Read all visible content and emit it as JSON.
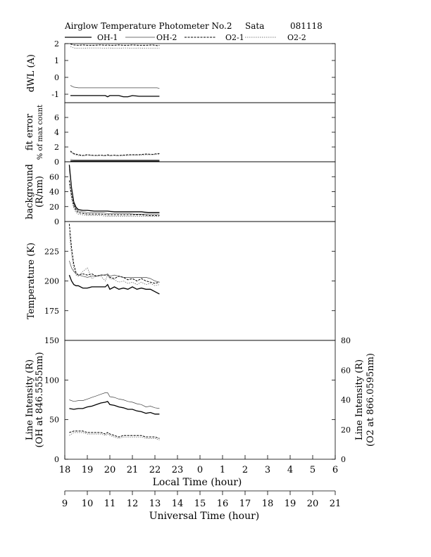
{
  "header": {
    "title": "Airglow Temperature Photometer No.2",
    "site": "Sata",
    "date": "081118"
  },
  "legend": [
    {
      "label": "OH-1",
      "style": "solid-thick"
    },
    {
      "label": "OH-2",
      "style": "solid-thin"
    },
    {
      "label": "O2-1",
      "style": "dash"
    },
    {
      "label": "O2-2",
      "style": "dot"
    }
  ],
  "chart_data": [
    {
      "type": "line",
      "id": "dwl",
      "ylabel": [
        "dWL (A)"
      ],
      "ylim": [
        -1.5,
        2
      ],
      "yticks": [
        -1,
        0,
        1,
        2
      ],
      "x": [
        9.25,
        9.4,
        9.6,
        9.8,
        10.0,
        10.3,
        10.6,
        10.8,
        10.9,
        11.0,
        11.2,
        11.4,
        11.6,
        11.8,
        12.0,
        12.3,
        12.6,
        12.9,
        13.1,
        13.2
      ],
      "series": [
        {
          "name": "OH-1",
          "values": [
            -1.08,
            -1.08,
            -1.08,
            -1.08,
            -1.08,
            -1.08,
            -1.08,
            -1.08,
            -1.15,
            -1.08,
            -1.08,
            -1.08,
            -1.15,
            -1.15,
            -1.08,
            -1.12,
            -1.12,
            -1.12,
            -1.12,
            -1.12
          ]
        },
        {
          "name": "OH-2",
          "values": [
            -0.48,
            -0.58,
            -0.62,
            -0.62,
            -0.62,
            -0.62,
            -0.62,
            -0.62,
            -0.62,
            -0.62,
            -0.62,
            -0.62,
            -0.62,
            -0.62,
            -0.62,
            -0.62,
            -0.62,
            -0.62,
            -0.62,
            -0.66
          ]
        },
        {
          "name": "O2-1",
          "values": [
            1.98,
            1.92,
            1.9,
            1.92,
            1.9,
            1.9,
            1.92,
            1.9,
            1.92,
            1.9,
            1.9,
            1.92,
            1.9,
            1.9,
            1.92,
            1.9,
            1.9,
            1.92,
            1.88,
            1.9
          ]
        },
        {
          "name": "O2-2",
          "values": [
            1.82,
            1.74,
            1.72,
            1.72,
            1.74,
            1.74,
            1.74,
            1.72,
            1.74,
            1.74,
            1.72,
            1.72,
            1.74,
            1.74,
            1.72,
            1.74,
            1.72,
            1.72,
            1.72,
            1.72
          ]
        }
      ]
    },
    {
      "type": "line",
      "id": "fiterror",
      "ylabel": [
        "fit error",
        "% of max count"
      ],
      "ylim": [
        0,
        8
      ],
      "yticks": [
        0,
        2,
        4,
        6
      ],
      "x": [
        9.25,
        9.4,
        9.6,
        9.8,
        10.0,
        10.3,
        10.6,
        10.8,
        10.9,
        11.0,
        11.2,
        11.4,
        11.6,
        11.8,
        12.0,
        12.3,
        12.6,
        12.9,
        13.1,
        13.2
      ],
      "series": [
        {
          "name": "OH-1",
          "values": [
            0.1,
            0.1,
            0.1,
            0.1,
            0.1,
            0.1,
            0.1,
            0.1,
            0.1,
            0.1,
            0.1,
            0.1,
            0.1,
            0.1,
            0.1,
            0.1,
            0.1,
            0.1,
            0.1,
            0.1
          ]
        },
        {
          "name": "OH-2",
          "values": [
            0.3,
            0.25,
            0.25,
            0.25,
            0.25,
            0.25,
            0.25,
            0.25,
            0.25,
            0.25,
            0.25,
            0.25,
            0.25,
            0.25,
            0.25,
            0.25,
            0.25,
            0.25,
            0.25,
            0.25
          ]
        },
        {
          "name": "O2-1",
          "values": [
            1.45,
            1.1,
            0.95,
            0.85,
            0.95,
            0.85,
            0.9,
            0.85,
            0.95,
            0.85,
            0.9,
            0.85,
            0.9,
            0.95,
            0.95,
            0.95,
            1.05,
            1.0,
            1.1,
            1.1
          ]
        },
        {
          "name": "O2-2",
          "values": [
            1.35,
            1.0,
            0.85,
            0.8,
            0.9,
            0.8,
            0.85,
            0.8,
            0.85,
            0.8,
            0.85,
            0.8,
            0.85,
            0.85,
            0.9,
            0.9,
            0.95,
            0.95,
            1.0,
            1.05
          ]
        }
      ]
    },
    {
      "type": "line",
      "id": "background",
      "ylabel": [
        "background",
        "(R/nm)"
      ],
      "ylim": [
        0,
        80
      ],
      "yticks": [
        0,
        20,
        40,
        60
      ],
      "x": [
        9.2,
        9.3,
        9.4,
        9.5,
        9.6,
        9.8,
        10.0,
        10.3,
        10.6,
        10.9,
        11.2,
        11.5,
        11.8,
        12.1,
        12.4,
        12.7,
        13.0,
        13.2
      ],
      "series": [
        {
          "name": "OH-1",
          "values": [
            76,
            45,
            26,
            19,
            16,
            15,
            15,
            14,
            14,
            14,
            13,
            13,
            13,
            13,
            13,
            12,
            12,
            12
          ]
        },
        {
          "name": "OH-2",
          "values": [
            70,
            42,
            24,
            17,
            14,
            13,
            12,
            12,
            12,
            11,
            11,
            11,
            11,
            10,
            10,
            10,
            10,
            10
          ]
        },
        {
          "name": "O2-1",
          "values": [
            55,
            35,
            21,
            15,
            12,
            11,
            10,
            10,
            10,
            9,
            9,
            9,
            9,
            9,
            9,
            8,
            8,
            8
          ]
        },
        {
          "name": "O2-2",
          "values": [
            50,
            30,
            18,
            12,
            10,
            9,
            8,
            8,
            8,
            7,
            7,
            7,
            7,
            7,
            7,
            7,
            7,
            7
          ]
        }
      ]
    },
    {
      "type": "line",
      "id": "temperature",
      "ylabel": [
        "Temperature (K)"
      ],
      "ylim": [
        150,
        250
      ],
      "yticks": [
        175,
        200,
        225
      ],
      "x": [
        9.2,
        9.3,
        9.4,
        9.5,
        9.6,
        9.8,
        10.0,
        10.2,
        10.4,
        10.6,
        10.8,
        10.9,
        11.0,
        11.2,
        11.4,
        11.6,
        11.8,
        12.0,
        12.2,
        12.4,
        12.6,
        12.8,
        13.0,
        13.2
      ],
      "series": [
        {
          "name": "OH-1",
          "values": [
            205,
            200,
            197,
            196,
            196,
            194,
            194,
            195,
            195,
            195,
            195,
            197,
            193,
            195,
            193,
            194,
            193,
            195,
            193,
            194,
            193,
            193,
            191,
            189
          ]
        },
        {
          "name": "OH-2",
          "values": [
            217,
            211,
            208,
            206,
            205,
            204,
            203,
            204,
            204,
            205,
            205,
            206,
            204,
            205,
            204,
            203,
            203,
            203,
            203,
            203,
            203,
            202,
            200,
            199
          ]
        },
        {
          "name": "O2-1",
          "values": [
            248,
            228,
            214,
            207,
            205,
            206,
            205,
            206,
            204,
            205,
            205,
            205,
            203,
            202,
            204,
            203,
            201,
            202,
            200,
            202,
            200,
            199,
            198,
            199
          ]
        },
        {
          "name": "O2-2",
          "values": [
            240,
            222,
            210,
            205,
            204,
            208,
            211,
            202,
            204,
            204,
            200,
            205,
            202,
            201,
            199,
            200,
            198,
            199,
            197,
            199,
            197,
            198,
            196,
            197
          ]
        }
      ]
    },
    {
      "type": "line",
      "id": "intensity",
      "ylabel": [
        "Line Intensity (R)",
        "(OH at 846.5555nm)"
      ],
      "ylabel_right": [
        "Line Intensity (R)",
        "(O2 at 866.0595nm)"
      ],
      "ylim": [
        0,
        150
      ],
      "yticks": [
        0,
        50,
        100,
        150
      ],
      "ylim_right": [
        0,
        80
      ],
      "yticks_right": [
        0,
        20,
        40,
        60,
        80
      ],
      "x": [
        9.2,
        9.4,
        9.6,
        9.8,
        10.0,
        10.2,
        10.4,
        10.6,
        10.8,
        10.9,
        11.0,
        11.2,
        11.4,
        11.6,
        11.8,
        12.0,
        12.2,
        12.4,
        12.6,
        12.8,
        13.0,
        13.2
      ],
      "series": [
        {
          "name": "OH-1",
          "axis": "left",
          "values": [
            64,
            63,
            64,
            64,
            66,
            67,
            69,
            71,
            72,
            73,
            69,
            68,
            66,
            65,
            63,
            63,
            61,
            60,
            58,
            59,
            57,
            57
          ]
        },
        {
          "name": "OH-2",
          "axis": "left",
          "values": [
            75,
            73,
            74,
            74,
            76,
            78,
            80,
            82,
            84,
            84,
            79,
            78,
            76,
            75,
            73,
            72,
            70,
            69,
            66,
            67,
            65,
            64
          ]
        },
        {
          "name": "O2-1",
          "axis": "right",
          "values": [
            18,
            19,
            19,
            19,
            18,
            18,
            18,
            18,
            17,
            18,
            17,
            16,
            15,
            16,
            16,
            16,
            16,
            16,
            15,
            15,
            15,
            14
          ]
        },
        {
          "name": "O2-2",
          "axis": "right",
          "values": [
            16,
            18,
            18,
            18,
            17,
            17,
            17,
            17,
            16,
            17,
            16,
            15,
            14,
            15,
            15,
            15,
            15,
            15,
            14,
            14,
            14,
            13
          ]
        }
      ]
    }
  ],
  "xaxis_local": {
    "label": "Local Time (hour)",
    "ticks": [
      "18",
      "19",
      "20",
      "21",
      "22",
      "23",
      "0",
      "1",
      "2",
      "3",
      "4",
      "5",
      "6"
    ]
  },
  "xaxis_ut": {
    "label": "Universal Time (hour)",
    "ticks": [
      "9",
      "10",
      "11",
      "12",
      "13",
      "14",
      "15",
      "16",
      "17",
      "18",
      "19",
      "20",
      "21"
    ]
  }
}
